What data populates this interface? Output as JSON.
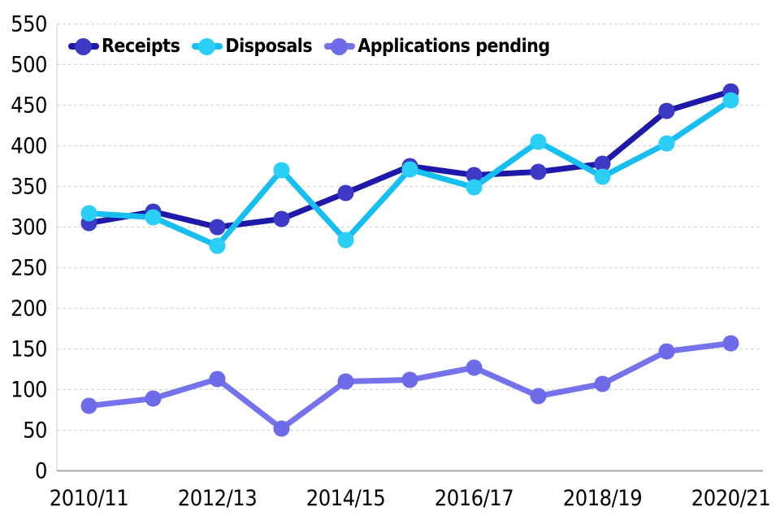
{
  "colors": {
    "background": "#FFFFFF",
    "gridline": "#D9D9D9",
    "x_axis_line": "#A6A6A6",
    "y_axis_line": "#D9D9D9",
    "text": "#000000"
  },
  "chart_data": {
    "type": "line",
    "title": "",
    "xlabel": "",
    "ylabel": "",
    "ylim": [
      0,
      550
    ],
    "y_tick_step": 50,
    "y_ticks": [
      0,
      50,
      100,
      150,
      200,
      250,
      300,
      350,
      400,
      450,
      500,
      550
    ],
    "grid": "horizontal-dashed",
    "legend_position": "top-left",
    "categories": [
      "2010/11",
      "2011/12",
      "2012/13",
      "2013/14",
      "2014/15",
      "2015/16",
      "2016/17",
      "2017/18",
      "2018/19",
      "2019/20",
      "2020/21"
    ],
    "x_tick_label_indices": [
      0,
      2,
      4,
      6,
      8,
      10
    ],
    "x_tick_labels": [
      "2010/11",
      "2012/13",
      "2014/15",
      "2016/17",
      "2018/19",
      "2020/21"
    ],
    "series": [
      {
        "name": "Receipts",
        "color": "#1F19A9",
        "marker_color": "#3E3AC8",
        "values": [
          305,
          319,
          300,
          310,
          342,
          375,
          364,
          368,
          378,
          443,
          467
        ]
      },
      {
        "name": "Disposals",
        "color": "#17BFF0",
        "marker_color": "#2BCFF5",
        "values": [
          317,
          312,
          277,
          370,
          284,
          371,
          349,
          405,
          362,
          403,
          456
        ]
      },
      {
        "name": "Applications pending",
        "color": "#7573EB",
        "marker_color": "#6D6BE8",
        "values": [
          80,
          89,
          113,
          52,
          110,
          112,
          127,
          92,
          107,
          147,
          157
        ]
      }
    ]
  }
}
